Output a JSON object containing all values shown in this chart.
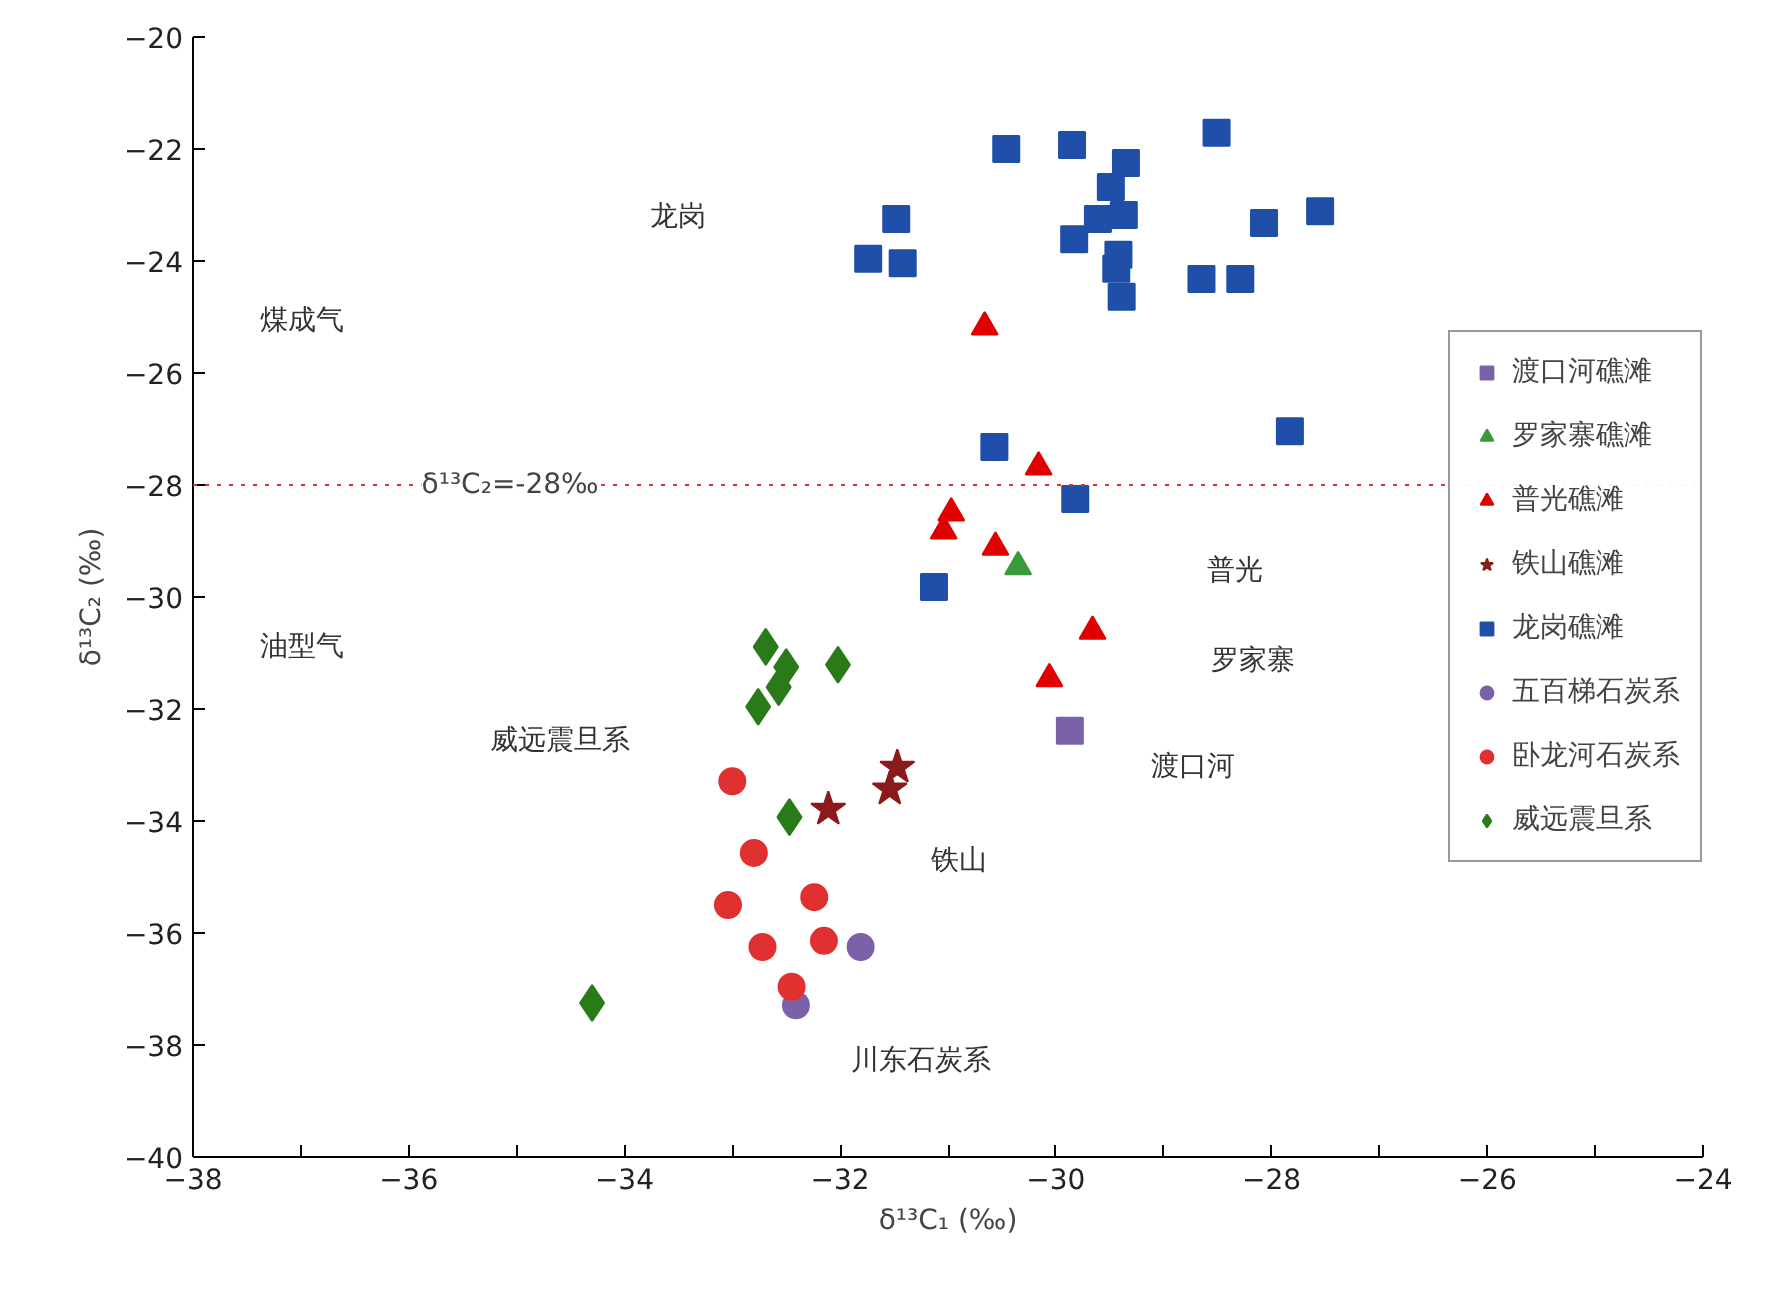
{
  "chart_data": {
    "type": "scatter",
    "xlabel": "δ¹³C₁ (‰)",
    "ylabel": "δ¹³C₂ (‰)",
    "xlim": [
      -38,
      -24
    ],
    "xticks": [
      -38,
      {
        "value": -37,
        "label": null
      },
      -36,
      {
        "value": -35,
        "label": null
      },
      -34,
      {
        "value": -33,
        "label": null
      },
      -32,
      {
        "value": -31,
        "label": null
      },
      -30,
      {
        "value": -29,
        "label": null
      },
      -28,
      {
        "value": -27,
        "label": null
      },
      -26,
      {
        "value": -25,
        "label": null
      },
      -24
    ],
    "ylim": [
      -40,
      -20
    ],
    "yticks": [
      -40,
      -38,
      -36,
      -34,
      -32,
      -30,
      -28,
      -26,
      -24,
      -22,
      -20
    ],
    "legend": "right",
    "series": [
      {
        "name": "渡口河礁滩",
        "color": "#7b62a8",
        "marker": "square",
        "x": [
          -29.87
        ],
        "values": [
          -32.39
        ]
      },
      {
        "name": "罗家寨礁滩",
        "color": "#3a9a3a",
        "marker": "triangle",
        "x": [
          -30.35
        ],
        "values": [
          -29.46
        ]
      },
      {
        "name": "普光礁滩",
        "color": "#e00000",
        "marker": "triangle",
        "x": [
          -30.66,
          -30.16,
          -30.97,
          -31.04,
          -30.56,
          -29.66,
          -30.06
        ],
        "values": [
          -25.18,
          -27.68,
          -28.5,
          -28.82,
          -29.11,
          -30.61,
          -31.46
        ]
      },
      {
        "name": "铁山礁滩",
        "color": "#8b1a1a",
        "marker": "star",
        "x": [
          -32.11,
          -31.47,
          -31.54
        ],
        "values": [
          -33.79,
          -33.04,
          -33.43
        ]
      },
      {
        "name": "龙岗礁滩",
        "color": "#1f4fa8",
        "marker": "square",
        "x": [
          -30.46,
          -29.85,
          -28.51,
          -29.35,
          -29.49,
          -31.48,
          -29.61,
          -29.37,
          -29.83,
          -28.07,
          -27.55,
          -31.74,
          -31.42,
          -29.42,
          -29.44,
          -29.39,
          -28.65,
          -28.29,
          -27.83,
          -30.57,
          -29.82,
          -31.13
        ],
        "values": [
          -22.0,
          -21.93,
          -21.71,
          -22.25,
          -22.68,
          -23.25,
          -23.25,
          -23.18,
          -23.61,
          -23.32,
          -23.11,
          -23.96,
          -24.04,
          -23.89,
          -24.14,
          -24.64,
          -24.32,
          -24.32,
          -27.04,
          -27.32,
          -28.25,
          -29.82
        ]
      },
      {
        "name": "五百梯石炭系",
        "color": "#7b62a8",
        "marker": "circle",
        "x": [
          -31.81,
          -32.41
        ],
        "values": [
          -36.25,
          -37.29
        ]
      },
      {
        "name": "卧龙河石炭系",
        "color": "#e03030",
        "marker": "circle",
        "x": [
          -33.0,
          -32.8,
          -33.04,
          -32.24,
          -32.72,
          -32.15,
          -32.45
        ],
        "values": [
          -33.29,
          -34.57,
          -35.5,
          -35.36,
          -36.25,
          -36.14,
          -36.96
        ]
      },
      {
        "name": "威远震旦系",
        "color": "#2a7a1a",
        "marker": "diamond",
        "x": [
          -32.69,
          -32.5,
          -32.57,
          -32.76,
          -32.02,
          -32.47,
          -34.3
        ],
        "values": [
          -30.89,
          -31.25,
          -31.61,
          -31.96,
          -31.21,
          -33.93,
          -37.25
        ]
      }
    ],
    "ref_lines": [
      {
        "axis": "y",
        "value": -28,
        "label": "δ¹³C₂=-28‰",
        "color": "#e03030",
        "line_style": "dotted"
      }
    ],
    "annotations": [
      "龙岗",
      "普光",
      "罗家寨",
      "渡口河",
      "铁山",
      "川东石炭系",
      "威远震旦系",
      "煤成气",
      "油型气"
    ]
  }
}
